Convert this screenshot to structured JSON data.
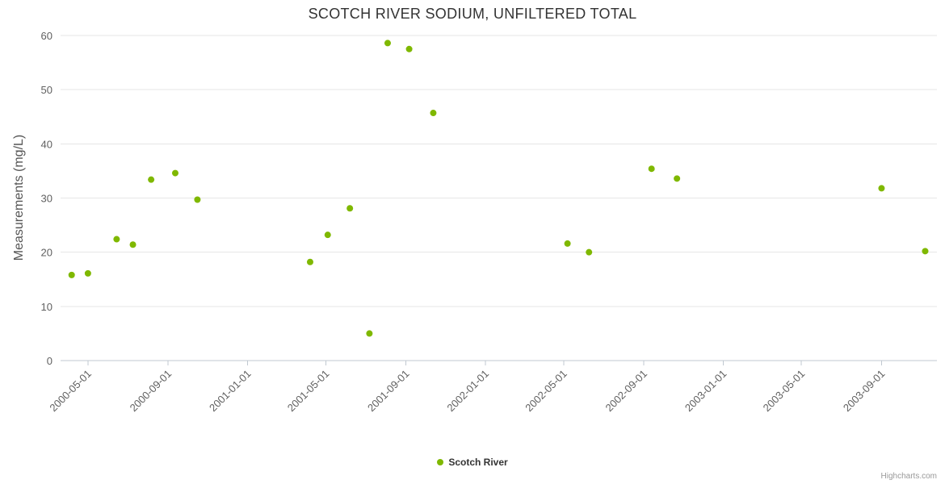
{
  "credits": "Highcharts.com",
  "chart_data": {
    "type": "scatter",
    "title": "SCOTCH RIVER SODIUM, UNFILTERED TOTAL",
    "xlabel": "",
    "ylabel": "Measurements (mg/L)",
    "ylim": [
      0,
      60
    ],
    "y_ticks": [
      0,
      10,
      20,
      30,
      40,
      50,
      60
    ],
    "x_range": [
      "2000-03-20",
      "2003-11-25"
    ],
    "x_ticks": [
      "2000-05-01",
      "2000-09-01",
      "2001-01-01",
      "2001-05-01",
      "2001-09-01",
      "2002-01-01",
      "2002-05-01",
      "2002-09-01",
      "2003-01-01",
      "2003-05-01",
      "2003-09-01"
    ],
    "grid": "horizontal",
    "legend_position": "bottom-center",
    "background_color": "#ffffff",
    "series": [
      {
        "name": "Scotch River",
        "color": "#7fb800",
        "data": [
          [
            "2000-04-06",
            15.8
          ],
          [
            "2000-05-01",
            16.1
          ],
          [
            "2000-06-14",
            22.4
          ],
          [
            "2000-07-09",
            21.4
          ],
          [
            "2000-08-06",
            33.4
          ],
          [
            "2000-09-12",
            34.6
          ],
          [
            "2000-10-16",
            29.7
          ],
          [
            "2001-04-07",
            18.2
          ],
          [
            "2001-05-04",
            23.2
          ],
          [
            "2001-06-07",
            28.1
          ],
          [
            "2001-07-07",
            5.0
          ],
          [
            "2001-08-04",
            58.6
          ],
          [
            "2001-09-06",
            57.5
          ],
          [
            "2001-10-13",
            45.7
          ],
          [
            "2002-05-07",
            21.6
          ],
          [
            "2002-06-09",
            20.0
          ],
          [
            "2002-09-13",
            35.4
          ],
          [
            "2002-10-22",
            33.6
          ],
          [
            "2003-09-01",
            31.8
          ],
          [
            "2003-11-07",
            20.2
          ]
        ]
      }
    ]
  }
}
